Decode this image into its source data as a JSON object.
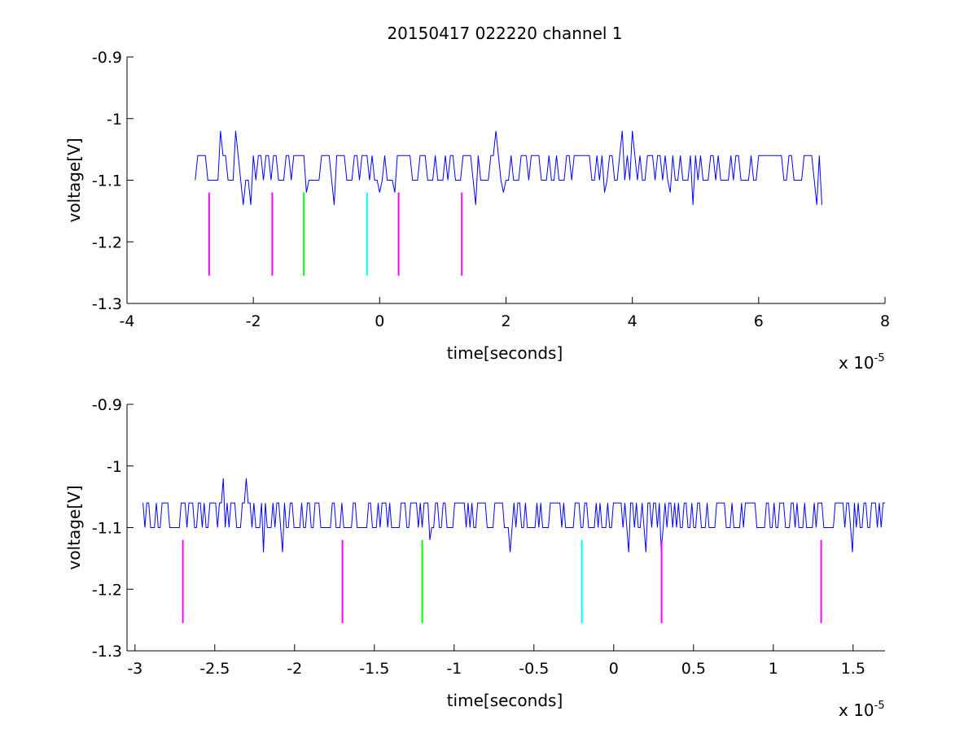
{
  "title": "20150417 022220 channel 1",
  "chart_data": [
    {
      "type": "line",
      "xlabel": "time[seconds]",
      "ylabel": "voltage[V]",
      "x_scale_note": "x 10",
      "x_scale_exponent": "-5",
      "xlim": [
        -4,
        8
      ],
      "ylim": [
        -1.3,
        -0.9
      ],
      "x_ticks": [
        "-4",
        "-2",
        "0",
        "2",
        "4",
        "6",
        "8"
      ],
      "y_ticks": [
        "-0.9",
        "-1",
        "-1.1",
        "-1.2",
        "-1.3"
      ],
      "grid": false,
      "signal": {
        "color": "#0000ff",
        "x_range": [
          -2.92,
          7.0
        ],
        "baseline": -1.1,
        "high": -1.06,
        "spikes_up": [
          [
            -2.5,
            -1.02
          ],
          [
            -2.3,
            -1.02
          ],
          [
            1.85,
            -1.02
          ],
          [
            3.85,
            -1.02
          ],
          [
            4.0,
            -1.02
          ]
        ],
        "spikes_down": [
          [
            -2.15,
            -1.14
          ],
          [
            -2.05,
            -1.14
          ],
          [
            -1.15,
            -1.12
          ],
          [
            -0.7,
            -1.14
          ],
          [
            0.0,
            -1.12
          ],
          [
            0.25,
            -1.12
          ],
          [
            1.5,
            -1.14
          ],
          [
            1.95,
            -1.12
          ],
          [
            3.55,
            -1.12
          ],
          [
            4.6,
            -1.12
          ],
          [
            4.95,
            -1.14
          ],
          [
            6.9,
            -1.14
          ],
          [
            6.98,
            -1.14
          ]
        ]
      },
      "markers": [
        {
          "x": -2.7,
          "color": "#ff00ff"
        },
        {
          "x": -1.7,
          "color": "#ff00ff"
        },
        {
          "x": -1.2,
          "color": "#00ff00"
        },
        {
          "x": -0.2,
          "color": "#00ffff"
        },
        {
          "x": 0.3,
          "color": "#ff00ff"
        },
        {
          "x": 1.3,
          "color": "#ff00ff"
        }
      ],
      "marker_y_range": [
        -1.255,
        -1.12
      ]
    },
    {
      "type": "line",
      "xlabel": "time[seconds]",
      "ylabel": "voltage[V]",
      "x_scale_note": "x 10",
      "x_scale_exponent": "-5",
      "xlim": [
        -3.05,
        1.7
      ],
      "ylim": [
        -1.3,
        -0.9
      ],
      "x_ticks": [
        "-3",
        "-2.5",
        "-2",
        "-1.5",
        "-1",
        "-0.5",
        "0",
        "0.5",
        "1",
        "1.5"
      ],
      "y_ticks": [
        "-0.9",
        "-1",
        "-1.1",
        "-1.2",
        "-1.3"
      ],
      "grid": false,
      "signal": {
        "color": "#0000ff",
        "x_range": [
          -2.95,
          1.7
        ],
        "baseline": -1.1,
        "high": -1.06,
        "spikes_up": [
          [
            -2.45,
            -1.02
          ],
          [
            -2.3,
            -1.02
          ]
        ],
        "spikes_down": [
          [
            -2.2,
            -1.14
          ],
          [
            -2.08,
            -1.14
          ],
          [
            -1.15,
            -1.12
          ],
          [
            -0.65,
            -1.14
          ],
          [
            0.1,
            -1.14
          ],
          [
            0.2,
            -1.14
          ],
          [
            0.3,
            -1.14
          ],
          [
            1.5,
            -1.14
          ]
        ]
      },
      "markers": [
        {
          "x": -2.7,
          "color": "#ff00ff"
        },
        {
          "x": -1.7,
          "color": "#ff00ff"
        },
        {
          "x": -1.2,
          "color": "#00ff00"
        },
        {
          "x": -0.2,
          "color": "#00ffff"
        },
        {
          "x": 0.3,
          "color": "#ff00ff"
        },
        {
          "x": 1.3,
          "color": "#ff00ff"
        }
      ],
      "marker_y_range": [
        -1.255,
        -1.12
      ]
    }
  ]
}
